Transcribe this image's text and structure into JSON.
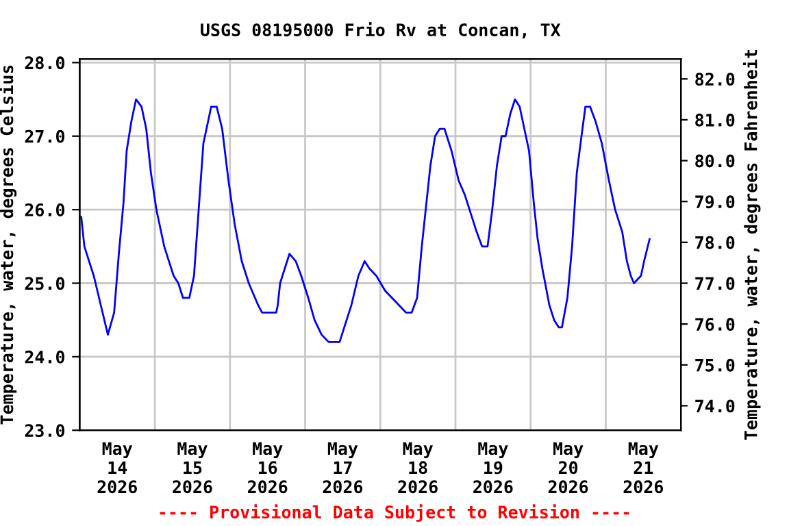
{
  "chart_data": {
    "type": "line",
    "title": "USGS 08195000 Frio Rv at Concan, TX",
    "ylabel": "Temperature, water, degrees Celsius",
    "y2label": "Temperature, water, degrees Fahrenheit",
    "annotations": [
      "---- Provisional Data Subject to Revision ----"
    ],
    "xlim": [
      "2026-05-14T00:00",
      "2026-05-22T00:00"
    ],
    "xticks": [
      {
        "value": "2026-05-15T00:00",
        "label": null
      },
      {
        "value": "2026-05-16T00:00",
        "label": null
      },
      {
        "value": "2026-05-17T00:00",
        "label": null
      },
      {
        "value": "2026-05-18T00:00",
        "label": null
      },
      {
        "value": "2026-05-19T00:00",
        "label": null
      },
      {
        "value": "2026-05-20T00:00",
        "label": null
      },
      {
        "value": "2026-05-21T00:00",
        "label": null
      },
      {
        "value": "2026-05-14T12:00",
        "label": "May\n14\n2026"
      },
      {
        "value": "2026-05-15T12:00",
        "label": "May\n15\n2026"
      },
      {
        "value": "2026-05-16T12:00",
        "label": "May\n16\n2026"
      },
      {
        "value": "2026-05-17T12:00",
        "label": "May\n17\n2026"
      },
      {
        "value": "2026-05-18T12:00",
        "label": "May\n18\n2026"
      },
      {
        "value": "2026-05-19T12:00",
        "label": "May\n19\n2026"
      },
      {
        "value": "2026-05-20T12:00",
        "label": "May\n20\n2026"
      },
      {
        "value": "2026-05-21T12:00",
        "label": "May\n21\n2026"
      }
    ],
    "ylim": [
      23,
      28.05
    ],
    "yticks": [
      {
        "value": 23,
        "label": "23.0"
      },
      {
        "value": 24,
        "label": "24.0"
      },
      {
        "value": 25,
        "label": "25.0"
      },
      {
        "value": 26,
        "label": "26.0"
      },
      {
        "value": 27,
        "label": "27.0"
      },
      {
        "value": 28,
        "label": "28.0"
      }
    ],
    "y2lim": [
      73.4,
      82.49
    ],
    "y2ticks": [
      {
        "value": 74,
        "label": "74.0"
      },
      {
        "value": 75,
        "label": "75.0"
      },
      {
        "value": 76,
        "label": "76.0"
      },
      {
        "value": 77,
        "label": "77.0"
      },
      {
        "value": 78,
        "label": "78.0"
      },
      {
        "value": 79,
        "label": "79.0"
      },
      {
        "value": 80,
        "label": "80.0"
      },
      {
        "value": 81,
        "label": "81.0"
      },
      {
        "value": 82,
        "label": "82.0"
      }
    ],
    "grid": true,
    "legend": false,
    "series": [
      {
        "color": "#0000ff",
        "x": [
          "2026-05-14T00:30",
          "2026-05-14T01:30",
          "2026-05-14T04:30",
          "2026-05-14T06:45",
          "2026-05-14T09:00",
          "2026-05-14T11:00",
          "2026-05-14T12:30",
          "2026-05-14T14:00",
          "2026-05-14T15:00",
          "2026-05-14T16:30",
          "2026-05-14T18:00",
          "2026-05-14T19:45",
          "2026-05-14T21:15",
          "2026-05-14T22:45",
          "2026-05-15T00:30",
          "2026-05-15T03:00",
          "2026-05-15T06:00",
          "2026-05-15T07:30",
          "2026-05-15T09:00",
          "2026-05-15T11:00",
          "2026-05-15T12:30",
          "2026-05-15T14:00",
          "2026-05-15T15:30",
          "2026-05-15T17:00",
          "2026-05-15T18:00",
          "2026-05-15T19:45",
          "2026-05-15T21:30",
          "2026-05-15T23:30",
          "2026-05-16T01:30",
          "2026-05-16T03:45",
          "2026-05-16T06:00",
          "2026-05-16T09:00",
          "2026-05-16T10:15",
          "2026-05-16T14:45",
          "2026-05-16T15:15",
          "2026-05-16T16:00",
          "2026-05-16T17:30",
          "2026-05-16T19:00",
          "2026-05-16T21:00",
          "2026-05-16T22:45",
          "2026-05-17T01:00",
          "2026-05-17T03:00",
          "2026-05-17T05:15",
          "2026-05-17T07:30",
          "2026-05-17T11:00",
          "2026-05-17T12:30",
          "2026-05-17T14:45",
          "2026-05-17T17:00",
          "2026-05-17T19:00",
          "2026-05-17T20:30",
          "2026-05-17T22:45",
          "2026-05-18T01:30",
          "2026-05-18T03:45",
          "2026-05-18T06:00",
          "2026-05-18T08:15",
          "2026-05-18T10:00",
          "2026-05-18T11:45",
          "2026-05-18T13:15",
          "2026-05-18T14:45",
          "2026-05-18T16:00",
          "2026-05-18T17:30",
          "2026-05-18T19:00",
          "2026-05-18T20:30",
          "2026-05-18T22:45",
          "2026-05-19T01:00",
          "2026-05-19T03:00",
          "2026-05-19T05:15",
          "2026-05-19T06:45",
          "2026-05-19T08:30",
          "2026-05-19T10:15",
          "2026-05-19T11:45",
          "2026-05-19T13:15",
          "2026-05-19T14:45",
          "2026-05-19T16:00",
          "2026-05-19T17:30",
          "2026-05-19T19:00",
          "2026-05-19T20:30",
          "2026-05-19T22:00",
          "2026-05-19T23:30",
          "2026-05-20T01:00",
          "2026-05-20T02:15",
          "2026-05-20T03:45",
          "2026-05-20T06:00",
          "2026-05-20T07:30",
          "2026-05-20T09:00",
          "2026-05-20T10:00",
          "2026-05-20T11:45",
          "2026-05-20T13:15",
          "2026-05-20T14:45",
          "2026-05-20T16:15",
          "2026-05-20T17:30",
          "2026-05-20T19:00",
          "2026-05-20T20:45",
          "2026-05-20T22:45",
          "2026-05-21T01:00",
          "2026-05-21T03:00",
          "2026-05-21T05:15",
          "2026-05-21T06:45",
          "2026-05-21T08:00",
          "2026-05-21T09:00",
          "2026-05-21T11:15",
          "2026-05-21T12:15",
          "2026-05-21T14:00"
        ],
        "values": [
          25.9,
          25.5,
          25.1,
          24.7,
          24.3,
          24.6,
          25.4,
          26.1,
          26.8,
          27.2,
          27.5,
          27.4,
          27.1,
          26.5,
          26.0,
          25.5,
          25.1,
          25.0,
          24.8,
          24.8,
          25.1,
          26.0,
          26.9,
          27.2,
          27.4,
          27.4,
          27.1,
          26.4,
          25.8,
          25.3,
          25.0,
          24.7,
          24.6,
          24.6,
          24.7,
          25.0,
          25.2,
          25.4,
          25.3,
          25.1,
          24.8,
          24.5,
          24.3,
          24.2,
          24.2,
          24.4,
          24.7,
          25.1,
          25.3,
          25.2,
          25.1,
          24.9,
          24.8,
          24.7,
          24.6,
          24.6,
          24.8,
          25.5,
          26.1,
          26.6,
          27.0,
          27.1,
          27.1,
          26.8,
          26.4,
          26.2,
          25.9,
          25.7,
          25.5,
          25.5,
          26.0,
          26.6,
          27.0,
          27.0,
          27.3,
          27.5,
          27.4,
          27.1,
          26.8,
          26.1,
          25.6,
          25.2,
          24.7,
          24.5,
          24.4,
          24.4,
          24.8,
          25.5,
          26.5,
          27.0,
          27.4,
          27.4,
          27.2,
          26.9,
          26.4,
          26.0,
          25.7,
          25.3,
          25.1,
          25.0,
          25.1,
          25.3,
          25.6
        ]
      }
    ]
  }
}
